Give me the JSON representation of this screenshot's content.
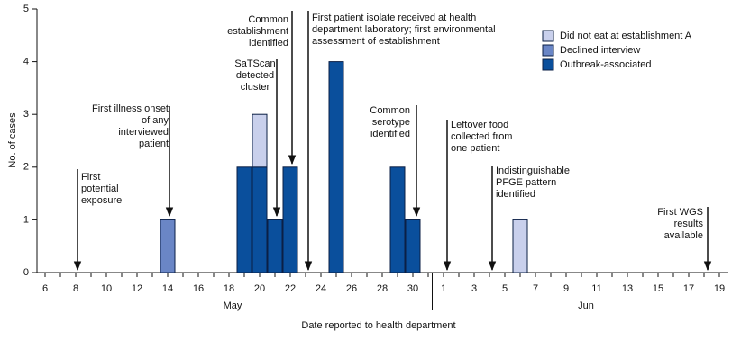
{
  "chart_data": {
    "type": "bar",
    "stacked": true,
    "x_label": "Date reported to health department",
    "y_label": "No. of cases",
    "categories": [
      "6",
      null,
      "8",
      null,
      "10",
      null,
      "12",
      null,
      "14",
      null,
      "16",
      null,
      "18",
      null,
      "20",
      null,
      "22",
      null,
      "24",
      null,
      "26",
      null,
      "28",
      null,
      "30",
      null,
      "1",
      null,
      "3",
      null,
      "5",
      null,
      "7",
      null,
      "9",
      null,
      "11",
      null,
      "13",
      null,
      "15",
      null,
      "17",
      null,
      "19"
    ],
    "month_labels": [
      "May",
      "Jun"
    ],
    "ylim": [
      0,
      5
    ],
    "yticks": [
      0,
      1,
      2,
      3,
      4,
      5
    ],
    "legend": "top-right",
    "series": [
      {
        "name": "Did not eat at establishment A",
        "color": "#c9d0ec",
        "values": [
          0,
          0,
          0,
          0,
          0,
          0,
          0,
          0,
          0,
          0,
          0,
          0,
          0,
          0,
          1,
          0,
          0,
          0,
          0,
          0,
          0,
          0,
          0,
          0,
          0,
          0,
          0,
          0,
          0,
          0,
          0,
          1,
          0,
          0,
          0,
          0,
          0,
          0,
          0,
          0,
          0,
          0,
          0,
          0,
          0
        ]
      },
      {
        "name": "Declined interview",
        "color": "#6a86c6",
        "values": [
          0,
          0,
          0,
          0,
          0,
          0,
          0,
          0,
          1,
          0,
          0,
          0,
          0,
          0,
          0,
          0,
          0,
          0,
          0,
          0,
          0,
          0,
          0,
          0,
          0,
          0,
          0,
          0,
          0,
          0,
          0,
          0,
          0,
          0,
          0,
          0,
          0,
          0,
          0,
          0,
          0,
          0,
          0,
          0,
          0
        ]
      },
      {
        "name": "Outbreak-associated",
        "color": "#0a4f9c",
        "values": [
          0,
          0,
          0,
          0,
          0,
          0,
          0,
          0,
          0,
          0,
          0,
          0,
          0,
          2,
          2,
          1,
          2,
          0,
          0,
          4,
          0,
          0,
          0,
          2,
          1,
          0,
          0,
          0,
          0,
          0,
          0,
          0,
          0,
          0,
          0,
          0,
          0,
          0,
          0,
          0,
          0,
          0,
          0,
          0,
          0
        ]
      }
    ],
    "annotations": [
      {
        "lines": [
          "First",
          "potential",
          "exposure"
        ]
      },
      {
        "lines": [
          "First illness onset",
          "of any",
          "interviewed",
          "patient"
        ]
      },
      {
        "lines": [
          "SaTScan",
          "detected",
          "cluster"
        ]
      },
      {
        "lines": [
          "Common",
          "establishment",
          "identified"
        ]
      },
      {
        "lines": [
          "First patient isolate received at health",
          "department laboratory; first environmental",
          "assessment of establishment"
        ]
      },
      {
        "lines": [
          "Common",
          "serotype",
          "identified"
        ]
      },
      {
        "lines": [
          "Leftover food",
          "collected from",
          "one patient"
        ]
      },
      {
        "lines": [
          "Indistinguishable",
          "PFGE pattern",
          "identified"
        ]
      },
      {
        "lines": [
          "First WGS",
          "results",
          "available"
        ]
      }
    ]
  }
}
